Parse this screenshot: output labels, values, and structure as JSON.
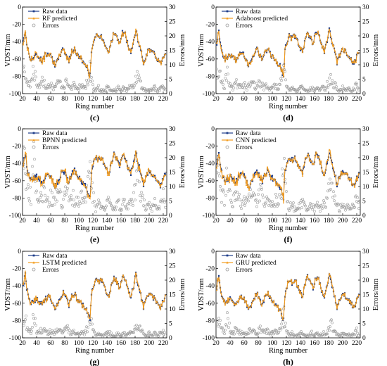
{
  "chart_data": [
    {
      "type": "line",
      "panel_label": "(c)",
      "xlabel": "Ring number",
      "ylabel": "VDST/mm",
      "y2label": "Errors/mm",
      "xlim": [
        20,
        225
      ],
      "ylim": [
        -100,
        0
      ],
      "y2lim": [
        0,
        30
      ],
      "xticks": [
        "20",
        "40",
        "60",
        "80",
        "100",
        "120",
        "140",
        "160",
        "180",
        "200",
        "220"
      ],
      "yticks": [
        "-100",
        "-80",
        "-60",
        "-40",
        "-20",
        "0"
      ],
      "y2ticks": [
        "0",
        "5",
        "10",
        "15",
        "20",
        "25",
        "30"
      ],
      "legend_position": "top-left",
      "series": [
        {
          "name": "Raw data",
          "color": "#1f3d8a",
          "marker": "square"
        },
        {
          "name": "RF predicted",
          "color": "#f39c1e",
          "marker": "triangle"
        },
        {
          "name": "Errors",
          "color": "#9a9a9a",
          "marker": "open-circle",
          "axis": "right"
        }
      ],
      "error_scale": 1.0
    },
    {
      "type": "line",
      "panel_label": "(d)",
      "xlabel": "Ring number",
      "ylabel": "VDST/mm",
      "y2label": "Errors/mm",
      "xlim": [
        20,
        225
      ],
      "ylim": [
        -100,
        0
      ],
      "y2lim": [
        0,
        30
      ],
      "xticks": [
        "20",
        "40",
        "60",
        "80",
        "100",
        "120",
        "140",
        "160",
        "180",
        "200",
        "220"
      ],
      "yticks": [
        "-100",
        "-80",
        "-60",
        "-40",
        "-20",
        "0"
      ],
      "y2ticks": [
        "0",
        "5",
        "10",
        "15",
        "20",
        "25",
        "30"
      ],
      "legend_position": "top-left",
      "series": [
        {
          "name": "Raw data",
          "color": "#1f3d8a",
          "marker": "square"
        },
        {
          "name": "Adaboost predicted",
          "color": "#f39c1e",
          "marker": "triangle"
        },
        {
          "name": "Errors",
          "color": "#9a9a9a",
          "marker": "open-circle",
          "axis": "right"
        }
      ],
      "error_scale": 1.0
    },
    {
      "type": "line",
      "panel_label": "(e)",
      "xlabel": "Ring number",
      "ylabel": "VDST/mm",
      "y2label": "Errors/mm",
      "xlim": [
        20,
        225
      ],
      "ylim": [
        -100,
        0
      ],
      "y2lim": [
        0,
        30
      ],
      "xticks": [
        "20",
        "40",
        "60",
        "80",
        "100",
        "120",
        "140",
        "160",
        "180",
        "200",
        "220"
      ],
      "yticks": [
        "-100",
        "-80",
        "-60",
        "-40",
        "-20",
        "0"
      ],
      "y2ticks": [
        "0",
        "5",
        "10",
        "15",
        "20",
        "25",
        "30"
      ],
      "legend_position": "top-left",
      "series": [
        {
          "name": "Raw data",
          "color": "#1f3d8a",
          "marker": "square"
        },
        {
          "name": "BPNN predicted",
          "color": "#f39c1e",
          "marker": "triangle"
        },
        {
          "name": "Errors",
          "color": "#9a9a9a",
          "marker": "open-circle",
          "axis": "right"
        }
      ],
      "error_scale": 2.2
    },
    {
      "type": "line",
      "panel_label": "(f)",
      "xlabel": "Ring number",
      "ylabel": "VDST/mm",
      "y2label": "Errors/mm",
      "xlim": [
        20,
        225
      ],
      "ylim": [
        -100,
        0
      ],
      "y2lim": [
        0,
        30
      ],
      "xticks": [
        "20",
        "40",
        "60",
        "80",
        "100",
        "120",
        "140",
        "160",
        "180",
        "200",
        "220"
      ],
      "yticks": [
        "-100",
        "-80",
        "-60",
        "-40",
        "-20",
        "0"
      ],
      "y2ticks": [
        "0",
        "5",
        "10",
        "15",
        "20",
        "25",
        "30"
      ],
      "legend_position": "top-left",
      "series": [
        {
          "name": "Raw data",
          "color": "#1f3d8a",
          "marker": "square"
        },
        {
          "name": "CNN predicted",
          "color": "#f39c1e",
          "marker": "triangle"
        },
        {
          "name": "Errors",
          "color": "#9a9a9a",
          "marker": "open-circle",
          "axis": "right"
        }
      ],
      "error_scale": 2.0
    },
    {
      "type": "line",
      "panel_label": "(g)",
      "xlabel": "Ring number",
      "ylabel": "VDST/mm",
      "y2label": "Errors/mm",
      "xlim": [
        20,
        225
      ],
      "ylim": [
        -100,
        0
      ],
      "y2lim": [
        0,
        30
      ],
      "xticks": [
        "20",
        "40",
        "60",
        "80",
        "100",
        "120",
        "140",
        "160",
        "180",
        "200",
        "220"
      ],
      "yticks": [
        "-100",
        "-80",
        "-60",
        "-40",
        "-20",
        "0"
      ],
      "y2ticks": [
        "0",
        "5",
        "10",
        "15",
        "20",
        "25",
        "30"
      ],
      "legend_position": "top-left",
      "series": [
        {
          "name": "Raw data",
          "color": "#1f3d8a",
          "marker": "square"
        },
        {
          "name": "LSTM predicted",
          "color": "#f39c1e",
          "marker": "triangle"
        },
        {
          "name": "Errors",
          "color": "#9a9a9a",
          "marker": "open-circle",
          "axis": "right"
        }
      ],
      "error_scale": 0.8
    },
    {
      "type": "line",
      "panel_label": "(h)",
      "xlabel": "Ring number",
      "ylabel": "VDST/mm",
      "y2label": "Errors/mm",
      "xlim": [
        20,
        225
      ],
      "ylim": [
        -100,
        0
      ],
      "y2lim": [
        0,
        30
      ],
      "xticks": [
        "20",
        "40",
        "60",
        "80",
        "100",
        "120",
        "140",
        "160",
        "180",
        "200",
        "220"
      ],
      "yticks": [
        "-100",
        "-80",
        "-60",
        "-40",
        "-20",
        "0"
      ],
      "y2ticks": [
        "0",
        "5",
        "10",
        "15",
        "20",
        "25",
        "30"
      ],
      "legend_position": "top-left",
      "series": [
        {
          "name": "Raw data",
          "color": "#1f3d8a",
          "marker": "square"
        },
        {
          "name": "GRU predicted",
          "color": "#f39c1e",
          "marker": "triangle"
        },
        {
          "name": "Errors",
          "color": "#9a9a9a",
          "marker": "open-circle",
          "axis": "right"
        }
      ],
      "error_scale": 0.8
    }
  ],
  "shared_series": {
    "vdst_anchor_points": [
      [
        20,
        -48
      ],
      [
        22,
        -35
      ],
      [
        24,
        -28
      ],
      [
        26,
        -42
      ],
      [
        28,
        -50
      ],
      [
        30,
        -57
      ],
      [
        33,
        -60
      ],
      [
        36,
        -58
      ],
      [
        40,
        -55
      ],
      [
        44,
        -58
      ],
      [
        48,
        -62
      ],
      [
        52,
        -56
      ],
      [
        56,
        -52
      ],
      [
        60,
        -55
      ],
      [
        63,
        -60
      ],
      [
        66,
        -68
      ],
      [
        70,
        -62
      ],
      [
        74,
        -54
      ],
      [
        78,
        -48
      ],
      [
        82,
        -55
      ],
      [
        86,
        -62
      ],
      [
        90,
        -52
      ],
      [
        94,
        -48
      ],
      [
        98,
        -56
      ],
      [
        102,
        -58
      ],
      [
        106,
        -63
      ],
      [
        109,
        -66
      ],
      [
        112,
        -70
      ],
      [
        114,
        -75
      ],
      [
        116,
        -79
      ],
      [
        118,
        -50
      ],
      [
        120,
        -42
      ],
      [
        124,
        -33
      ],
      [
        128,
        -36
      ],
      [
        132,
        -33
      ],
      [
        136,
        -40
      ],
      [
        140,
        -48
      ],
      [
        143,
        -52
      ],
      [
        146,
        -40
      ],
      [
        150,
        -30
      ],
      [
        154,
        -35
      ],
      [
        158,
        -42
      ],
      [
        162,
        -30
      ],
      [
        166,
        -32
      ],
      [
        170,
        -45
      ],
      [
        174,
        -52
      ],
      [
        178,
        -40
      ],
      [
        181,
        -27
      ],
      [
        184,
        -38
      ],
      [
        188,
        -50
      ],
      [
        192,
        -64
      ],
      [
        196,
        -55
      ],
      [
        200,
        -48
      ],
      [
        204,
        -52
      ],
      [
        208,
        -55
      ],
      [
        212,
        -60
      ],
      [
        216,
        -65
      ],
      [
        220,
        -57
      ],
      [
        223,
        -52
      ]
    ],
    "error_anchor_points": [
      [
        20,
        6
      ],
      [
        24,
        8
      ],
      [
        28,
        4
      ],
      [
        32,
        3
      ],
      [
        36,
        9
      ],
      [
        40,
        3
      ],
      [
        44,
        2
      ],
      [
        48,
        4
      ],
      [
        52,
        3
      ],
      [
        56,
        2
      ],
      [
        60,
        3
      ],
      [
        64,
        2
      ],
      [
        68,
        3
      ],
      [
        72,
        4
      ],
      [
        76,
        2
      ],
      [
        80,
        3
      ],
      [
        84,
        4
      ],
      [
        88,
        2
      ],
      [
        92,
        3
      ],
      [
        96,
        2
      ],
      [
        100,
        2
      ],
      [
        104,
        3
      ],
      [
        108,
        2
      ],
      [
        112,
        4
      ],
      [
        116,
        9
      ],
      [
        120,
        3
      ],
      [
        124,
        1
      ],
      [
        128,
        2
      ],
      [
        132,
        1
      ],
      [
        136,
        1
      ],
      [
        140,
        2
      ],
      [
        144,
        2
      ],
      [
        148,
        1
      ],
      [
        152,
        1
      ],
      [
        156,
        2
      ],
      [
        160,
        1
      ],
      [
        164,
        2
      ],
      [
        168,
        1
      ],
      [
        172,
        2
      ],
      [
        176,
        2
      ],
      [
        180,
        4
      ],
      [
        184,
        6
      ],
      [
        188,
        3
      ],
      [
        192,
        2
      ],
      [
        196,
        1
      ],
      [
        200,
        2
      ],
      [
        204,
        1
      ],
      [
        208,
        2
      ],
      [
        212,
        1
      ],
      [
        216,
        2
      ],
      [
        220,
        3
      ],
      [
        223,
        1
      ]
    ]
  }
}
